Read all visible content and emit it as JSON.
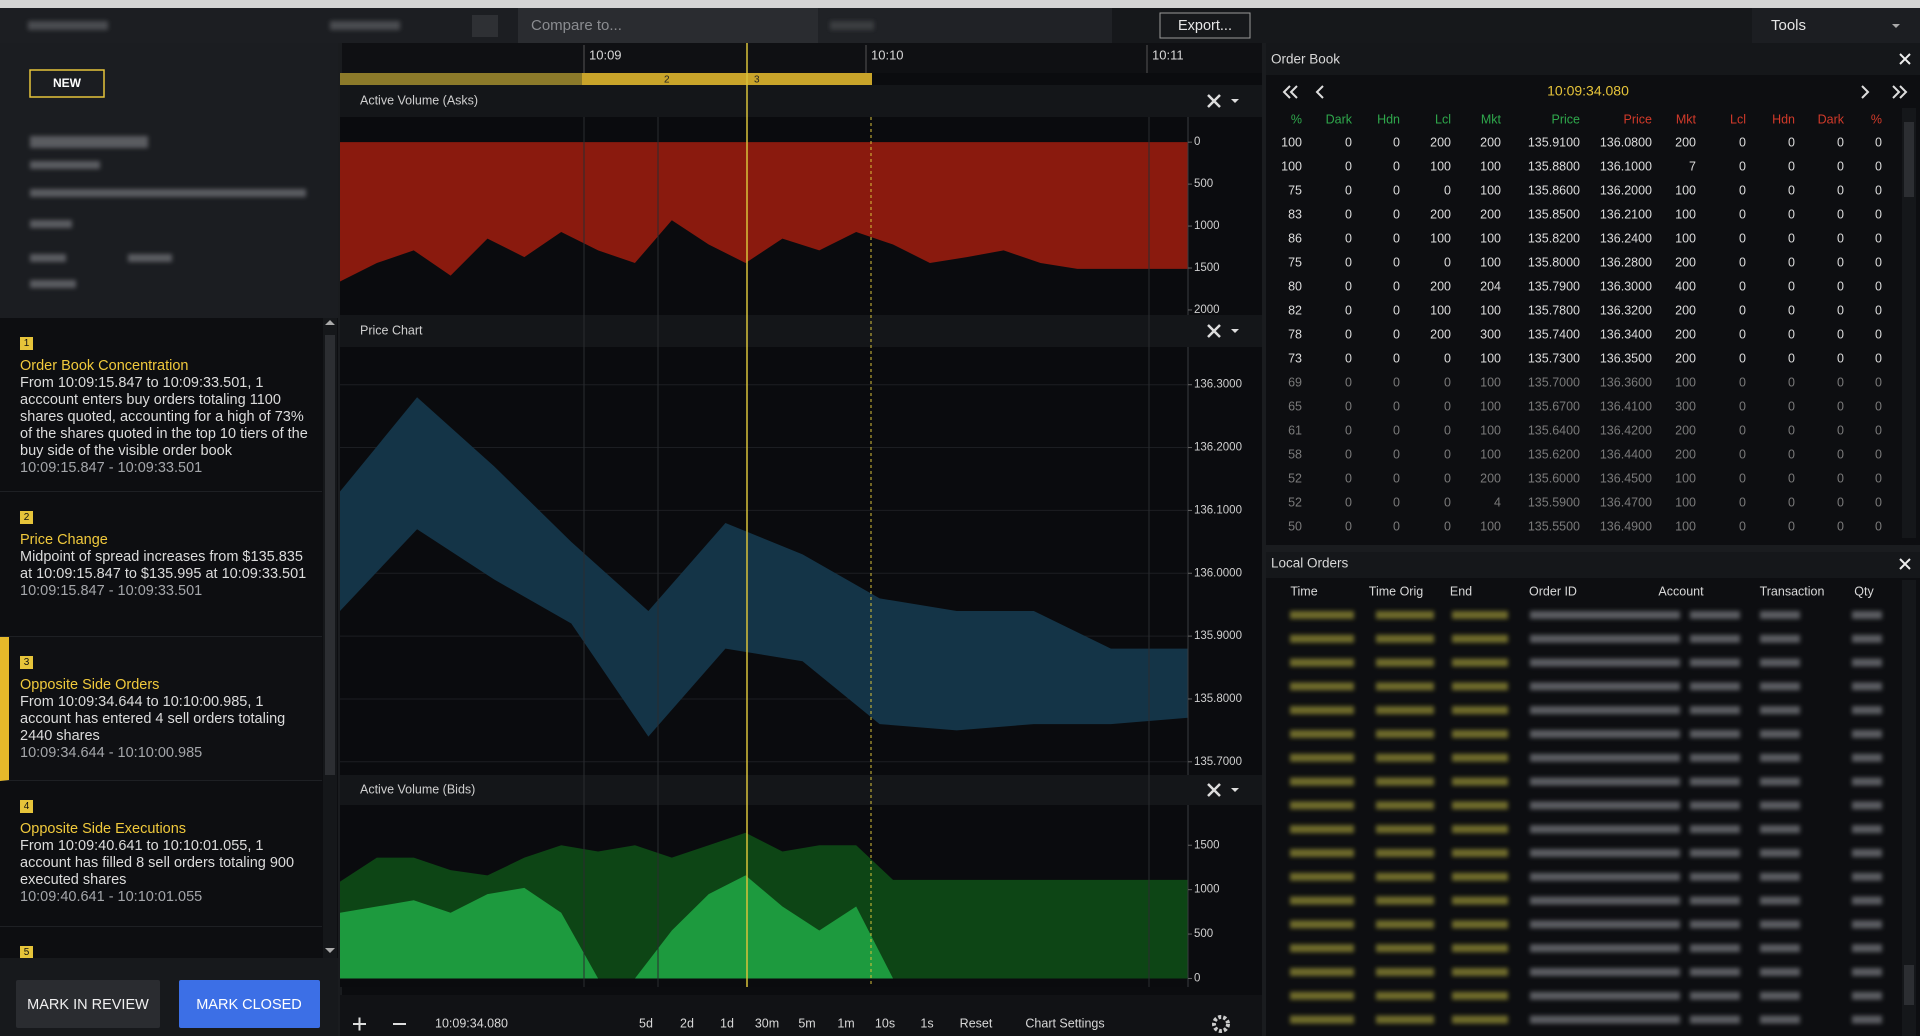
{
  "toolbar": {
    "compare": "Compare to...",
    "export": "Export...",
    "tools": "Tools"
  },
  "case": {
    "status": "NEW"
  },
  "alerts": [
    {
      "number": "1",
      "title": "Order Book Concentration",
      "description": "From 10:09:15.847 to 10:09:33.501, 1 acccount enters buy orders totaling 1100 shares quoted, accounting for a high of 73% of the shares quoted in the top 10 tiers of the buy side of the visible order book",
      "range": "10:09:15.847 - 10:09:33.501"
    },
    {
      "number": "2",
      "title": "Price Change",
      "description": "Midpoint of spread increases from $135.835 at 10:09:15.847 to $135.995 at 10:09:33.501",
      "range": "10:09:15.847 - 10:09:33.501"
    },
    {
      "number": "3",
      "title": "Opposite Side Orders",
      "description": "From 10:09:34.644 to 10:10:00.985, 1 account has entered 4 sell orders totaling 2440 shares",
      "range": "10:09:34.644 - 10:10:00.985"
    },
    {
      "number": "4",
      "title": "Opposite Side Executions",
      "description": "From 10:09:40.641 to 10:10:01.055, 1 account has filled 8 sell orders totaling 900 executed shares",
      "range": "10:09:40.641 - 10:10:01.055"
    },
    {
      "number": "5"
    }
  ],
  "actions": {
    "review": "MARK IN REVIEW",
    "close": "MARK CLOSED"
  },
  "timeline": {
    "ticks": [
      "10:09",
      "10:10",
      "10:11"
    ],
    "markers": [
      "2",
      "3"
    ]
  },
  "chart_data": [
    {
      "type": "area",
      "title": "Active Volume (Asks)",
      "invert_y": true,
      "grid": false,
      "series": [
        {
          "color": "#8a1a0e",
          "values": [
            1660,
            1440,
            1290,
            1590,
            1150,
            1370,
            1070,
            1290,
            1440,
            930,
            1220,
            1440,
            1150,
            1290,
            1070,
            1220,
            1440,
            1370,
            1290,
            1440,
            1510,
            1510,
            1510,
            1510
          ]
        }
      ],
      "ylim": [
        -300,
        2060
      ],
      "yticks": [
        0,
        500,
        1000,
        1500,
        2000
      ]
    },
    {
      "type": "band",
      "title": "Price Chart",
      "grid": true,
      "series": [
        {
          "color": "#143447",
          "values": [
            136.13,
            136.28,
            136.17,
            136.05,
            135.94,
            136.08,
            136.03,
            135.96,
            135.94,
            135.94,
            135.88,
            135.88
          ]
        },
        {
          "color": "#143447",
          "values": [
            135.94,
            136.07,
            135.99,
            135.92,
            135.74,
            135.88,
            135.86,
            135.76,
            135.75,
            135.76,
            135.76,
            135.77
          ]
        }
      ],
      "ylim": [
        135.679,
        136.36
      ],
      "yticks": [
        {
          "value": 136.3,
          "label": "136.3000"
        },
        {
          "value": 136.2,
          "label": "136.2000"
        },
        {
          "value": 136.1,
          "label": "136.1000"
        },
        {
          "value": 136.0,
          "label": "136.0000"
        },
        {
          "value": 135.9,
          "label": "135.9000"
        },
        {
          "value": 135.8,
          "label": "135.8000"
        },
        {
          "value": 135.7,
          "label": "135.7000"
        }
      ]
    },
    {
      "type": "area",
      "title": "Active Volume (Bids)",
      "grid": false,
      "series": [
        {
          "color": "#0d4515",
          "values": [
            1090,
            1360,
            1360,
            1220,
            1160,
            1360,
            1500,
            1430,
            1500,
            1360,
            1500,
            1640,
            1430,
            1500,
            1500,
            1110,
            1110,
            1110,
            1110,
            1110,
            1110,
            1110,
            1110,
            1110
          ]
        },
        {
          "color": "#1d9a3e",
          "values": [
            740,
            810,
            880,
            740,
            950,
            1020,
            740,
            0,
            0,
            540,
            950,
            1160,
            810,
            540,
            810,
            0,
            0,
            0,
            0,
            0,
            0,
            0,
            0,
            0
          ]
        }
      ],
      "ylim": [
        -96,
        1953
      ],
      "yticks": [
        0,
        500,
        1000,
        1500
      ]
    }
  ],
  "chart_controls": {
    "time": "10:09:34.080",
    "ranges": [
      "5d",
      "2d",
      "1d",
      "30m",
      "5m",
      "1m",
      "10s",
      "1s"
    ],
    "reset": "Reset",
    "settings": "Chart Settings"
  },
  "order_book": {
    "title": "Order Book",
    "time": "10:09:34.080",
    "columns": [
      "%",
      "Dark",
      "Hdn",
      "Lcl",
      "Mkt",
      "Price",
      "Price",
      "Mkt",
      "Lcl",
      "Hdn",
      "Dark",
      "%"
    ],
    "rows": [
      [
        "100",
        "0",
        "0",
        "200",
        "200",
        "135.9100",
        "136.0800",
        "200",
        "0",
        "0",
        "0",
        "0"
      ],
      [
        "100",
        "0",
        "0",
        "100",
        "100",
        "135.8800",
        "136.1000",
        "7",
        "0",
        "0",
        "0",
        "0"
      ],
      [
        "75",
        "0",
        "0",
        "0",
        "100",
        "135.8600",
        "136.2000",
        "100",
        "0",
        "0",
        "0",
        "0"
      ],
      [
        "83",
        "0",
        "0",
        "200",
        "200",
        "135.8500",
        "136.2100",
        "100",
        "0",
        "0",
        "0",
        "0"
      ],
      [
        "86",
        "0",
        "0",
        "100",
        "100",
        "135.8200",
        "136.2400",
        "100",
        "0",
        "0",
        "0",
        "0"
      ],
      [
        "75",
        "0",
        "0",
        "0",
        "100",
        "135.8000",
        "136.2800",
        "200",
        "0",
        "0",
        "0",
        "0"
      ],
      [
        "80",
        "0",
        "0",
        "200",
        "204",
        "135.7900",
        "136.3000",
        "400",
        "0",
        "0",
        "0",
        "0"
      ],
      [
        "82",
        "0",
        "0",
        "100",
        "100",
        "135.7800",
        "136.3200",
        "200",
        "0",
        "0",
        "0",
        "0"
      ],
      [
        "78",
        "0",
        "0",
        "200",
        "300",
        "135.7400",
        "136.3400",
        "200",
        "0",
        "0",
        "0",
        "0"
      ],
      [
        "73",
        "0",
        "0",
        "0",
        "100",
        "135.7300",
        "136.3500",
        "200",
        "0",
        "0",
        "0",
        "0"
      ],
      [
        "69",
        "0",
        "0",
        "0",
        "100",
        "135.7000",
        "136.3600",
        "100",
        "0",
        "0",
        "0",
        "0"
      ],
      [
        "65",
        "0",
        "0",
        "0",
        "100",
        "135.6700",
        "136.4100",
        "300",
        "0",
        "0",
        "0",
        "0"
      ],
      [
        "61",
        "0",
        "0",
        "0",
        "100",
        "135.6400",
        "136.4200",
        "200",
        "0",
        "0",
        "0",
        "0"
      ],
      [
        "58",
        "0",
        "0",
        "0",
        "100",
        "135.6200",
        "136.4400",
        "200",
        "0",
        "0",
        "0",
        "0"
      ],
      [
        "52",
        "0",
        "0",
        "0",
        "200",
        "135.6000",
        "136.4500",
        "100",
        "0",
        "0",
        "0",
        "0"
      ],
      [
        "52",
        "0",
        "0",
        "0",
        "4",
        "135.5900",
        "136.4700",
        "100",
        "0",
        "0",
        "0",
        "0"
      ],
      [
        "50",
        "0",
        "0",
        "0",
        "100",
        "135.5500",
        "136.4900",
        "100",
        "0",
        "0",
        "0",
        "0"
      ]
    ]
  },
  "local_orders": {
    "title": "Local Orders",
    "columns": [
      "Time",
      "Time Orig",
      "End",
      "Order ID",
      "Account",
      "Transaction",
      "Qty"
    ]
  }
}
